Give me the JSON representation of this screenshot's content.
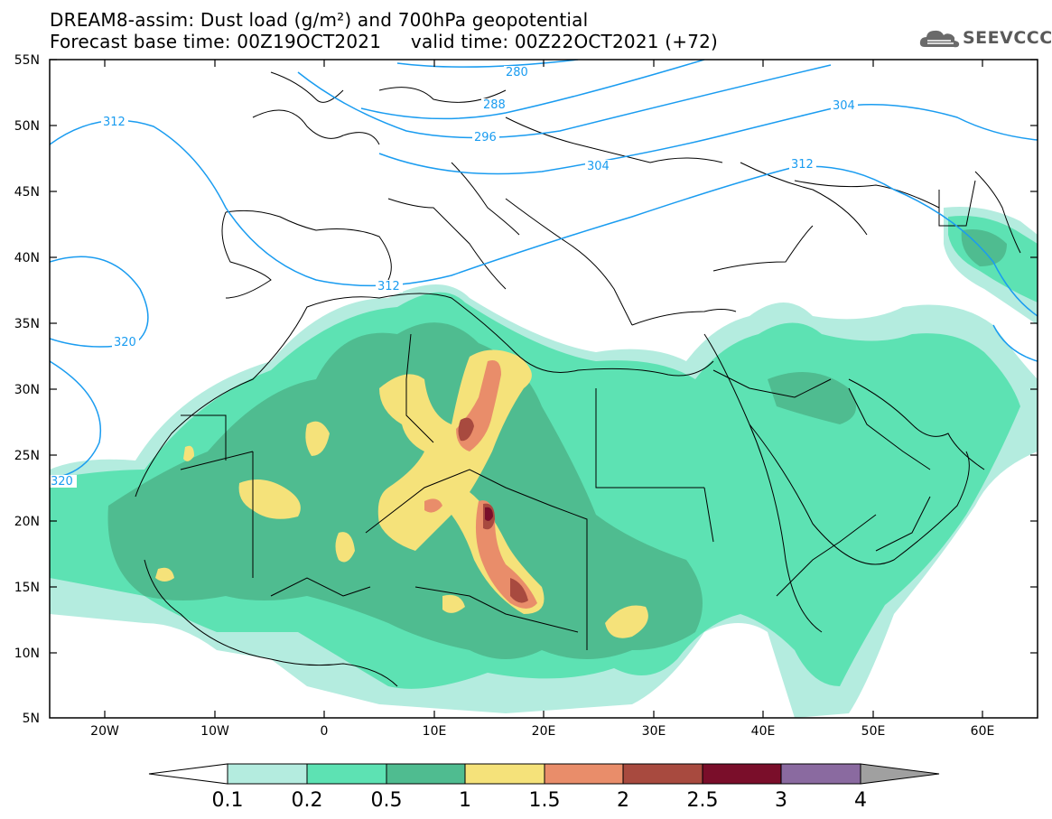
{
  "title": {
    "line1": "DREAM8-assim: Dust load (g/m²) and 700hPa geopotential",
    "line2": "Forecast base time: 00Z19OCT2021     valid time: 00Z22OCT2021 (+72)"
  },
  "logo": {
    "text": "SEEVCCC",
    "icon": "cloud-icon"
  },
  "map": {
    "lat_labels": [
      "55N",
      "50N",
      "45N",
      "40N",
      "35N",
      "30N",
      "25N",
      "20N",
      "15N",
      "10N",
      "5N"
    ],
    "lon_labels": [
      "20W",
      "10W",
      "0",
      "10E",
      "20E",
      "30E",
      "40E",
      "50E",
      "60E"
    ],
    "contour_labels": [
      "280",
      "288",
      "296",
      "304",
      "304",
      "312",
      "312",
      "312",
      "320",
      "320"
    ],
    "contour_color": "#1a9cf0"
  },
  "colorbar": {
    "labels": [
      "0.1",
      "0.2",
      "0.5",
      "1",
      "1.5",
      "2",
      "2.5",
      "3",
      "4"
    ],
    "colors": [
      "#b4ecdf",
      "#5de2b3",
      "#4fbc90",
      "#f5e27a",
      "#e98d6a",
      "#a84a3f",
      "#7a0e2a",
      "#8a6aa0",
      "#a0a0a0"
    ]
  }
}
